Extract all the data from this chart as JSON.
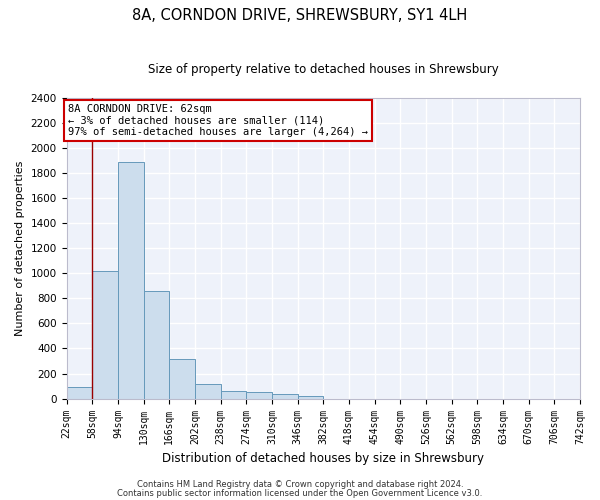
{
  "title": "8A, CORNDON DRIVE, SHREWSBURY, SY1 4LH",
  "subtitle": "Size of property relative to detached houses in Shrewsbury",
  "xlabel": "Distribution of detached houses by size in Shrewsbury",
  "ylabel": "Number of detached properties",
  "bar_color": "#ccdded",
  "bar_edge_color": "#6699bb",
  "bg_color": "#eef2fa",
  "grid_color": "#ffffff",
  "bin_edges": [
    22,
    58,
    94,
    130,
    166,
    202,
    238,
    274,
    310,
    346,
    382,
    418,
    454,
    490,
    526,
    562,
    598,
    634,
    670,
    706,
    742
  ],
  "bar_heights": [
    90,
    1020,
    1890,
    860,
    315,
    120,
    60,
    50,
    35,
    25,
    0,
    0,
    0,
    0,
    0,
    0,
    0,
    0,
    0,
    0
  ],
  "ylim": [
    0,
    2400
  ],
  "yticks": [
    0,
    200,
    400,
    600,
    800,
    1000,
    1200,
    1400,
    1600,
    1800,
    2000,
    2200,
    2400
  ],
  "property_size": 62,
  "annotation_line1": "8A CORNDON DRIVE: 62sqm",
  "annotation_line2": "← 3% of detached houses are smaller (114)",
  "annotation_line3": "97% of semi-detached houses are larger (4,264) →",
  "vline_x": 58,
  "footer_line1": "Contains HM Land Registry data © Crown copyright and database right 2024.",
  "footer_line2": "Contains public sector information licensed under the Open Government Licence v3.0."
}
